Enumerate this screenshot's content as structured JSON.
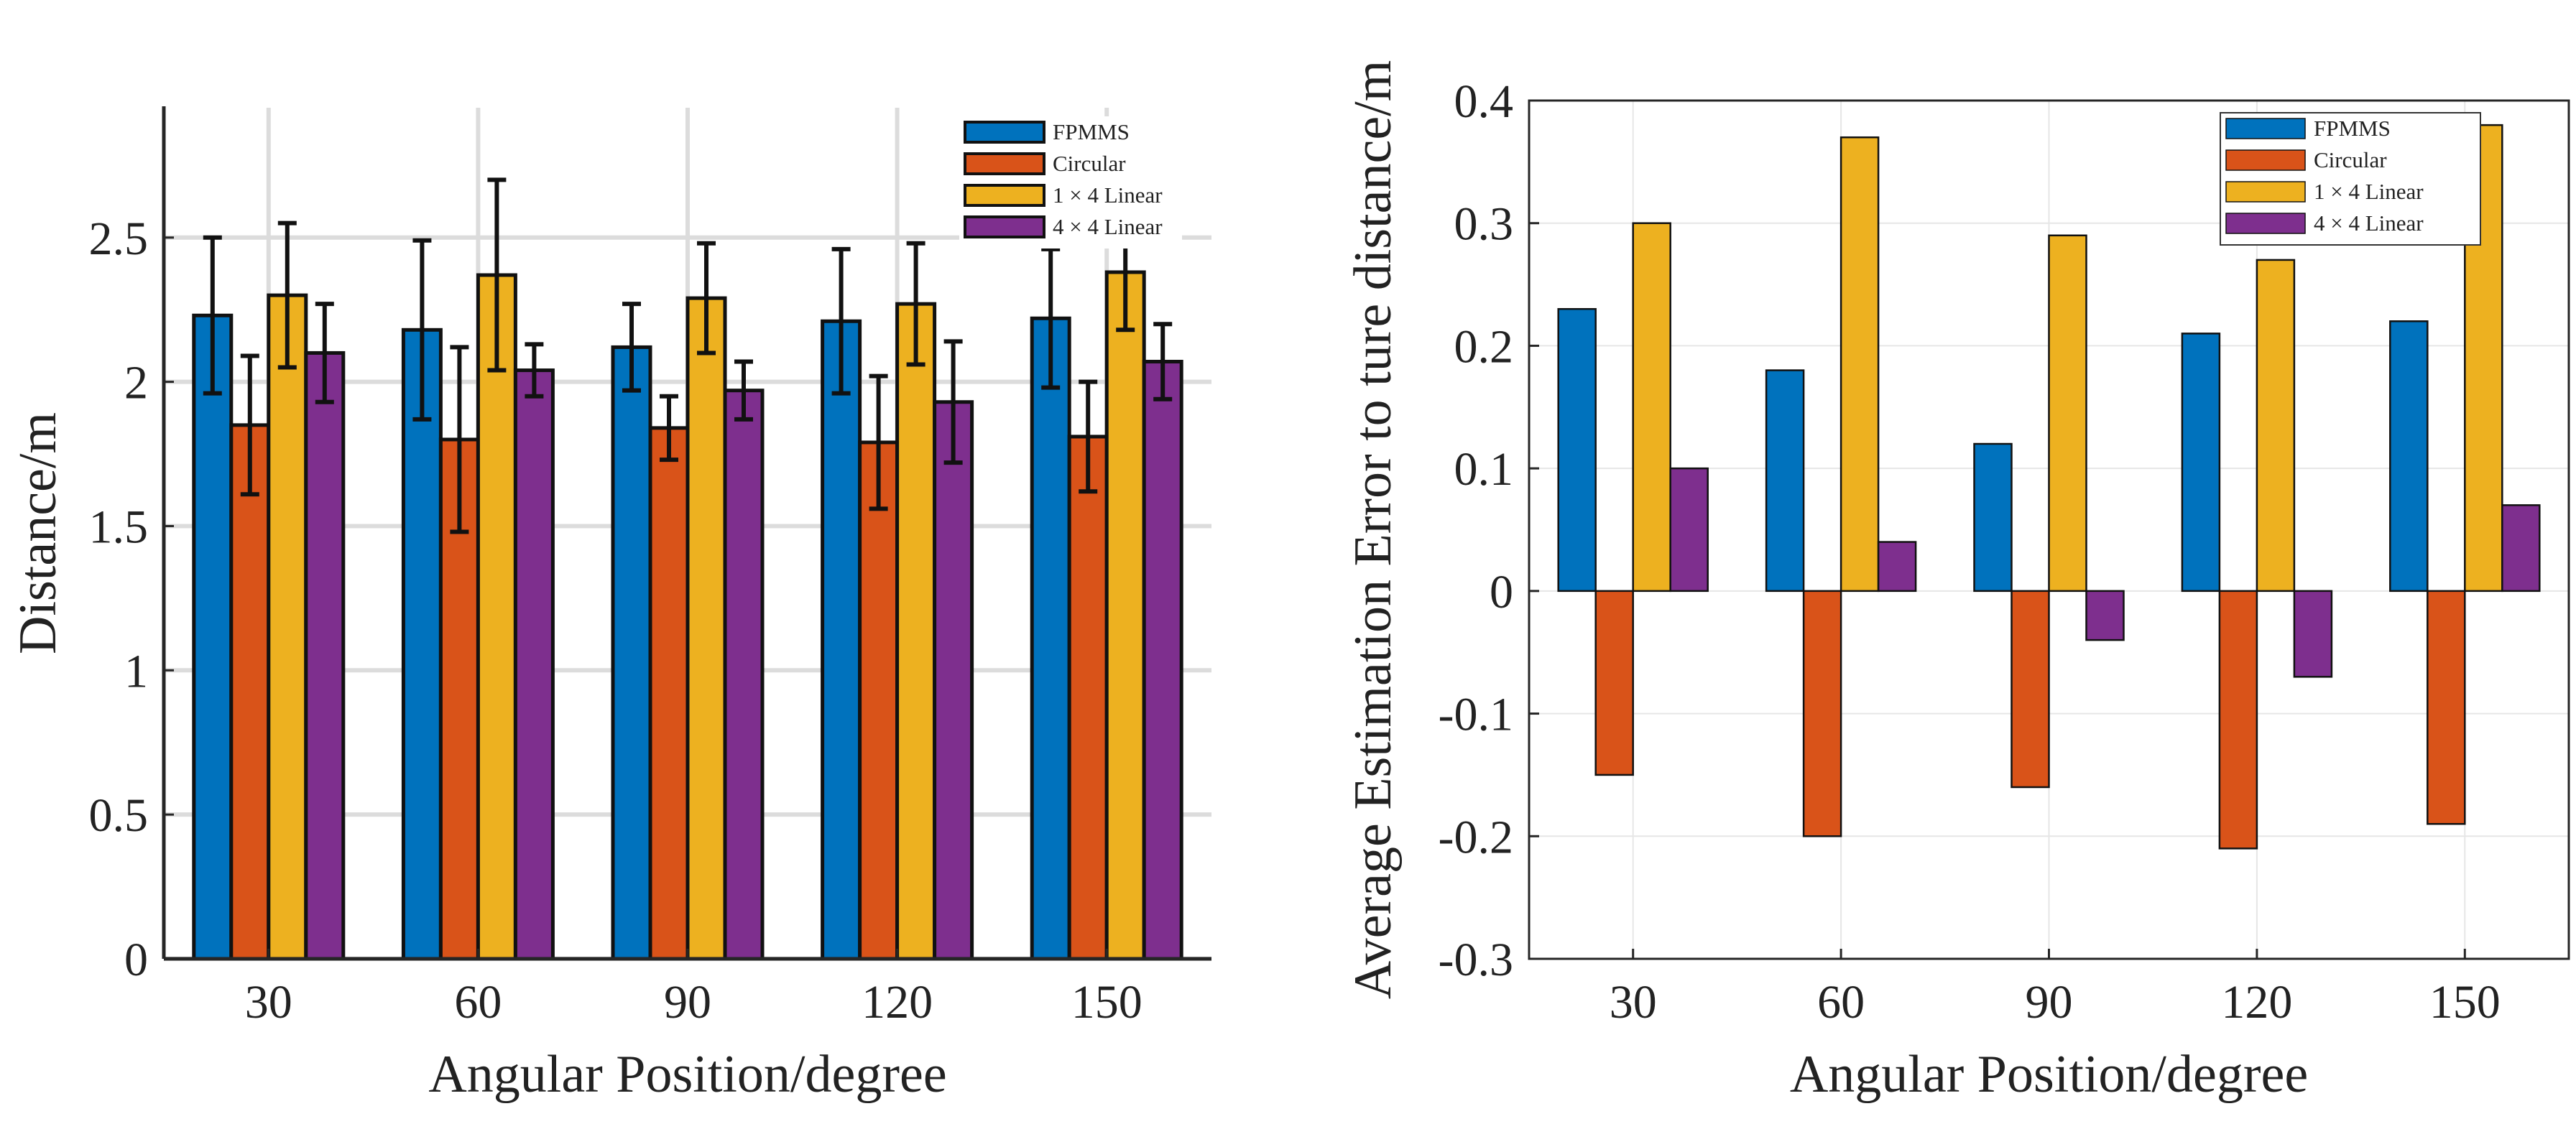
{
  "colors": {
    "FPMMS": "#0072BD",
    "Circular": "#D95319",
    "Linear14": "#EDB120",
    "Linear44": "#7E2F8E"
  },
  "chart_data": [
    {
      "type": "bar",
      "name": "distance-chart",
      "title": "",
      "xlabel": "Angular Position/degree",
      "ylabel": "Distance/m",
      "categories": [
        "30",
        "60",
        "90",
        "120",
        "150"
      ],
      "ylim": [
        0,
        2.95
      ],
      "yticks": [
        0,
        0.5,
        1,
        1.5,
        2,
        2.5
      ],
      "ytick_labels": [
        "0",
        "0.5",
        "1",
        "1.5",
        "2",
        "2.5"
      ],
      "grid": true,
      "legend_position": "top-right",
      "error_bars": true,
      "series": [
        {
          "name": "FPMMS",
          "color_key": "FPMMS",
          "values": [
            2.23,
            2.18,
            2.12,
            2.21,
            2.22
          ],
          "errors": [
            0.27,
            0.31,
            0.15,
            0.25,
            0.24
          ]
        },
        {
          "name": "Circular",
          "color_key": "Circular",
          "values": [
            1.85,
            1.8,
            1.84,
            1.79,
            1.81
          ],
          "errors": [
            0.24,
            0.32,
            0.11,
            0.23,
            0.19
          ]
        },
        {
          "name": "1 × 4 Linear",
          "color_key": "Linear14",
          "values": [
            2.3,
            2.37,
            2.29,
            2.27,
            2.38
          ],
          "errors": [
            0.25,
            0.33,
            0.19,
            0.21,
            0.2
          ]
        },
        {
          "name": "4 × 4 Linear",
          "color_key": "Linear44",
          "values": [
            2.1,
            2.04,
            1.97,
            1.93,
            2.07
          ],
          "errors": [
            0.17,
            0.09,
            0.1,
            0.21,
            0.13
          ]
        }
      ]
    },
    {
      "type": "bar",
      "name": "error-chart",
      "title": "",
      "xlabel": "Angular Position/degree",
      "ylabel": "Average Estimation Error to ture distance/m",
      "categories": [
        "30",
        "60",
        "90",
        "120",
        "150"
      ],
      "ylim": [
        -0.3,
        0.4
      ],
      "yticks": [
        -0.3,
        -0.2,
        -0.1,
        0,
        0.1,
        0.2,
        0.3,
        0.4
      ],
      "ytick_labels": [
        "-0.3",
        "-0.2",
        "-0.1",
        "0",
        "0.1",
        "0.2",
        "0.3",
        "0.4"
      ],
      "grid": true,
      "legend_position": "top-right",
      "error_bars": false,
      "series": [
        {
          "name": "FPMMS",
          "color_key": "FPMMS",
          "values": [
            0.23,
            0.18,
            0.12,
            0.21,
            0.22
          ]
        },
        {
          "name": "Circular",
          "color_key": "Circular",
          "values": [
            -0.15,
            -0.2,
            -0.16,
            -0.21,
            -0.19
          ]
        },
        {
          "name": "1 × 4 Linear",
          "color_key": "Linear14",
          "values": [
            0.3,
            0.37,
            0.29,
            0.27,
            0.38
          ]
        },
        {
          "name": "4 × 4 Linear",
          "color_key": "Linear44",
          "values": [
            0.1,
            0.04,
            -0.04,
            -0.07,
            0.07
          ]
        }
      ]
    }
  ]
}
